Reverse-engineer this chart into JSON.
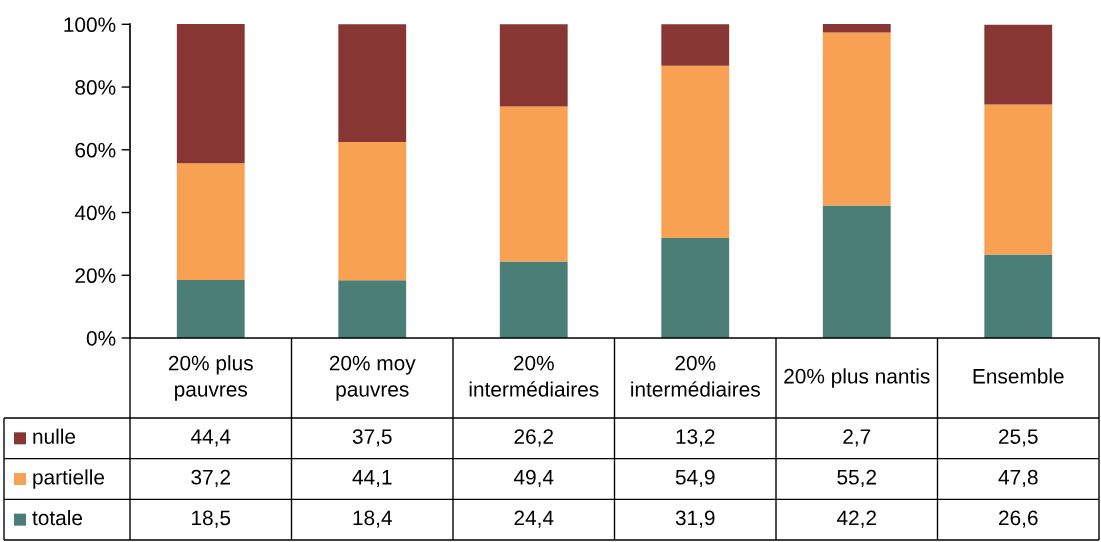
{
  "chart_data": {
    "type": "bar",
    "stacked": true,
    "categories": [
      "20% plus pauvres",
      "20% moy pauvres",
      "20% intermédiaires",
      "20% intermédiaires",
      "20% plus nantis",
      "Ensemble"
    ],
    "series": [
      {
        "name": "totale",
        "color": "#4a7e77",
        "values": [
          18.5,
          18.4,
          24.4,
          31.9,
          42.2,
          26.6
        ],
        "value_labels": [
          "18,5",
          "18,4",
          "24,4",
          "31,9",
          "42,2",
          "26,6"
        ]
      },
      {
        "name": "partielle",
        "color": "#f9a152",
        "values": [
          37.2,
          44.1,
          49.4,
          54.9,
          55.2,
          47.8
        ],
        "value_labels": [
          "37,2",
          "44,1",
          "49,4",
          "54,9",
          "55,2",
          "47,8"
        ]
      },
      {
        "name": "nulle",
        "color": "#873634",
        "values": [
          44.4,
          37.5,
          26.2,
          13.2,
          2.7,
          25.5
        ],
        "value_labels": [
          "44,4",
          "37,5",
          "26,2",
          "13,2",
          "2,7",
          "25,5"
        ]
      }
    ],
    "ylim": [
      0,
      100.1
    ],
    "yticks": [
      {
        "value": 0,
        "label": "0%"
      },
      {
        "value": 20,
        "label": "20%"
      },
      {
        "value": 40,
        "label": "40%"
      },
      {
        "value": 60,
        "label": "60%"
      },
      {
        "value": 80,
        "label": "80%"
      },
      {
        "value": 100,
        "label": "100%"
      }
    ],
    "legend": "bottom left"
  }
}
